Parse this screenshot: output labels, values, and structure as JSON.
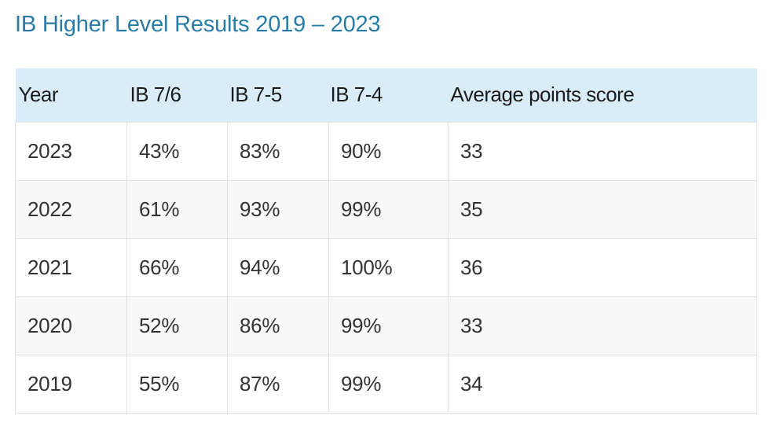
{
  "title": "IB Higher Level Results 2019 – 2023",
  "table": {
    "headers": [
      "Year",
      "IB 7/6",
      "IB 7-5",
      "IB 7-4",
      "Average points score"
    ],
    "rows": [
      [
        "2023",
        "43%",
        "83%",
        "90%",
        "33"
      ],
      [
        "2022",
        "61%",
        "93%",
        "99%",
        "35"
      ],
      [
        "2021",
        "66%",
        "94%",
        "100%",
        "36"
      ],
      [
        "2020",
        "52%",
        "86%",
        "99%",
        "33"
      ],
      [
        "2019",
        "55%",
        "87%",
        "99%",
        "34"
      ]
    ]
  },
  "colors": {
    "title": "#2a7ca8",
    "header_bg": "#d8edf7",
    "row_alt_bg": "#f8f8f8",
    "border": "#e3e3e3"
  }
}
